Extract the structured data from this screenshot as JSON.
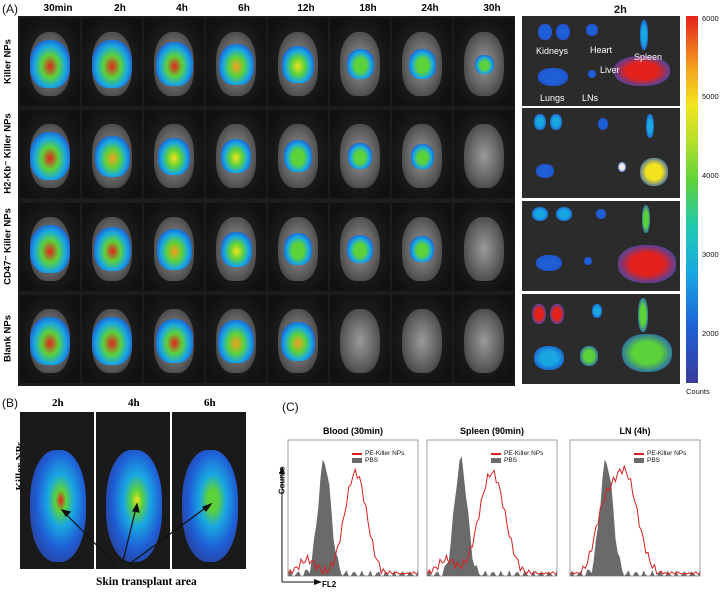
{
  "panel_a": {
    "letter": "(A)",
    "time_labels": [
      "30min",
      "2h",
      "4h",
      "6h",
      "12h",
      "18h",
      "24h",
      "30h"
    ],
    "organ_time_label": "2h",
    "row_labels": [
      "Killer NPs",
      "H2-Kb⁻ Killer NPs",
      "CD47⁻ Killer NPs",
      "Blank NPs"
    ],
    "organ_labels": [
      "Kidneys",
      "Heart",
      "Spleen",
      "Liver",
      "Lungs",
      "LNs"
    ],
    "colorbar": {
      "ticks": [
        "6000",
        "5000",
        "4000",
        "3000",
        "2000"
      ],
      "unit": "Counts"
    }
  },
  "panel_b": {
    "letter": "(B)",
    "time_labels": [
      "2h",
      "4h",
      "6h"
    ],
    "row_label": "Killer NPs",
    "caption": "Skin transplant area"
  },
  "panel_c": {
    "letter": "(C)",
    "plots": [
      {
        "title": "Blood (30min)"
      },
      {
        "title": "Spleen (90min)"
      },
      {
        "title": "LN (4h)"
      }
    ],
    "legend": {
      "series1": "PE-Killer NPs",
      "series2": "PBS"
    },
    "axis": {
      "y": "Counts",
      "x": "FL2"
    },
    "colors": {
      "pe": "#d62020",
      "pbs": "#6a6a6a"
    }
  }
}
